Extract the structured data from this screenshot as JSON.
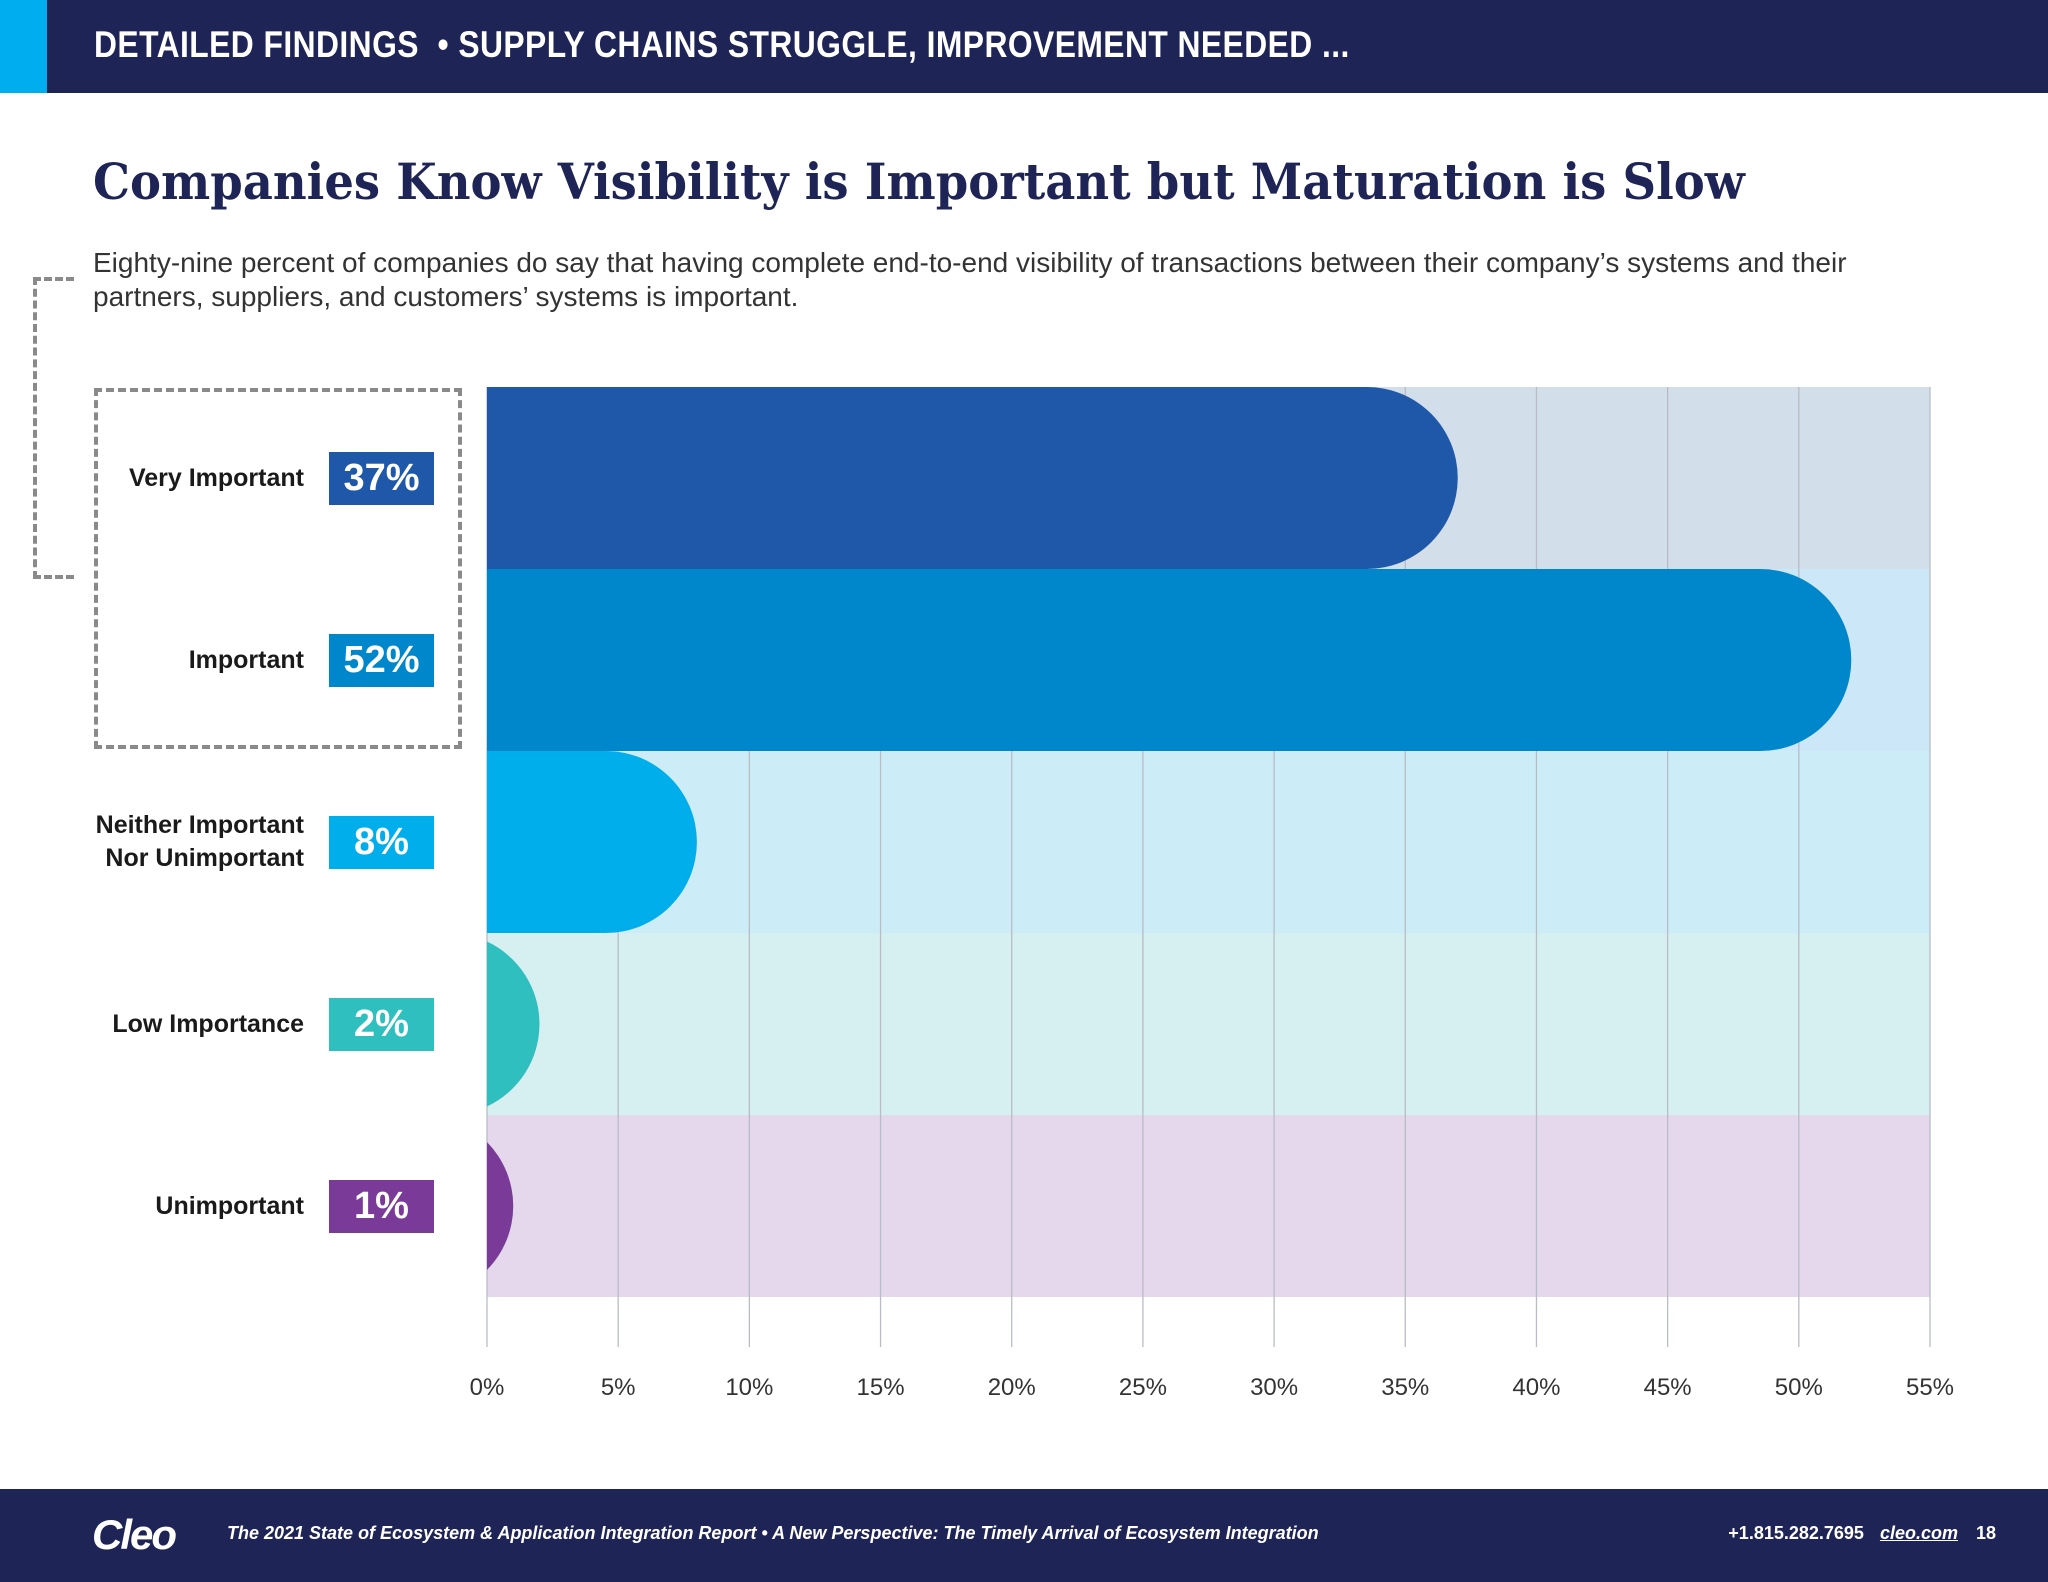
{
  "header": {
    "section": "DETAILED FINDINGS",
    "separator": "•",
    "subsection": "SUPPLY CHAINS STRUGGLE, IMPROVEMENT NEEDED ..."
  },
  "title": "Companies Know Visibility is Important but Maturation is Slow",
  "body": "Eighty-nine percent of companies do say that having complete end-to-end visibility of transactions between their company’s systems and their partners, suppliers, and customers’ systems is important.",
  "chart_data": {
    "type": "bar",
    "orientation": "horizontal",
    "categories": [
      "Very Important",
      "Important",
      "Neither Important Nor Unimportant",
      "Low Importance",
      "Unimportant"
    ],
    "category_lines": [
      [
        "Very Important"
      ],
      [
        "Important"
      ],
      [
        "Neither Important",
        "Nor Unimportant"
      ],
      [
        "Low Importance"
      ],
      [
        "Unimportant"
      ]
    ],
    "values": [
      37,
      52,
      8,
      2,
      1
    ],
    "value_labels": [
      "37%",
      "52%",
      "8%",
      "2%",
      "1%"
    ],
    "colors": [
      "#1f58a9",
      "#0087cb",
      "#00aeeb",
      "#2fbfbf",
      "#7a3b98"
    ],
    "row_backgrounds": [
      "#d3deeb",
      "#cce8f8",
      "#ccedf8",
      "#d6f0f2",
      "#e5d8ec"
    ],
    "xlim": [
      0,
      55
    ],
    "x_ticks": [
      "0%",
      "5%",
      "10%",
      "15%",
      "20%",
      "25%",
      "30%",
      "35%",
      "40%",
      "45%",
      "50%",
      "55%"
    ],
    "grid": true,
    "highlighted": [
      "Very Important",
      "Important"
    ]
  },
  "footer": {
    "logo": "Cleo",
    "note": "The 2021 State of Ecosystem & Application Integration Report  •  A New Perspective: The Timely Arrival of Ecosystem Integration",
    "phone": "+1.815.282.7695",
    "website": "cleo.com",
    "page": "18"
  }
}
